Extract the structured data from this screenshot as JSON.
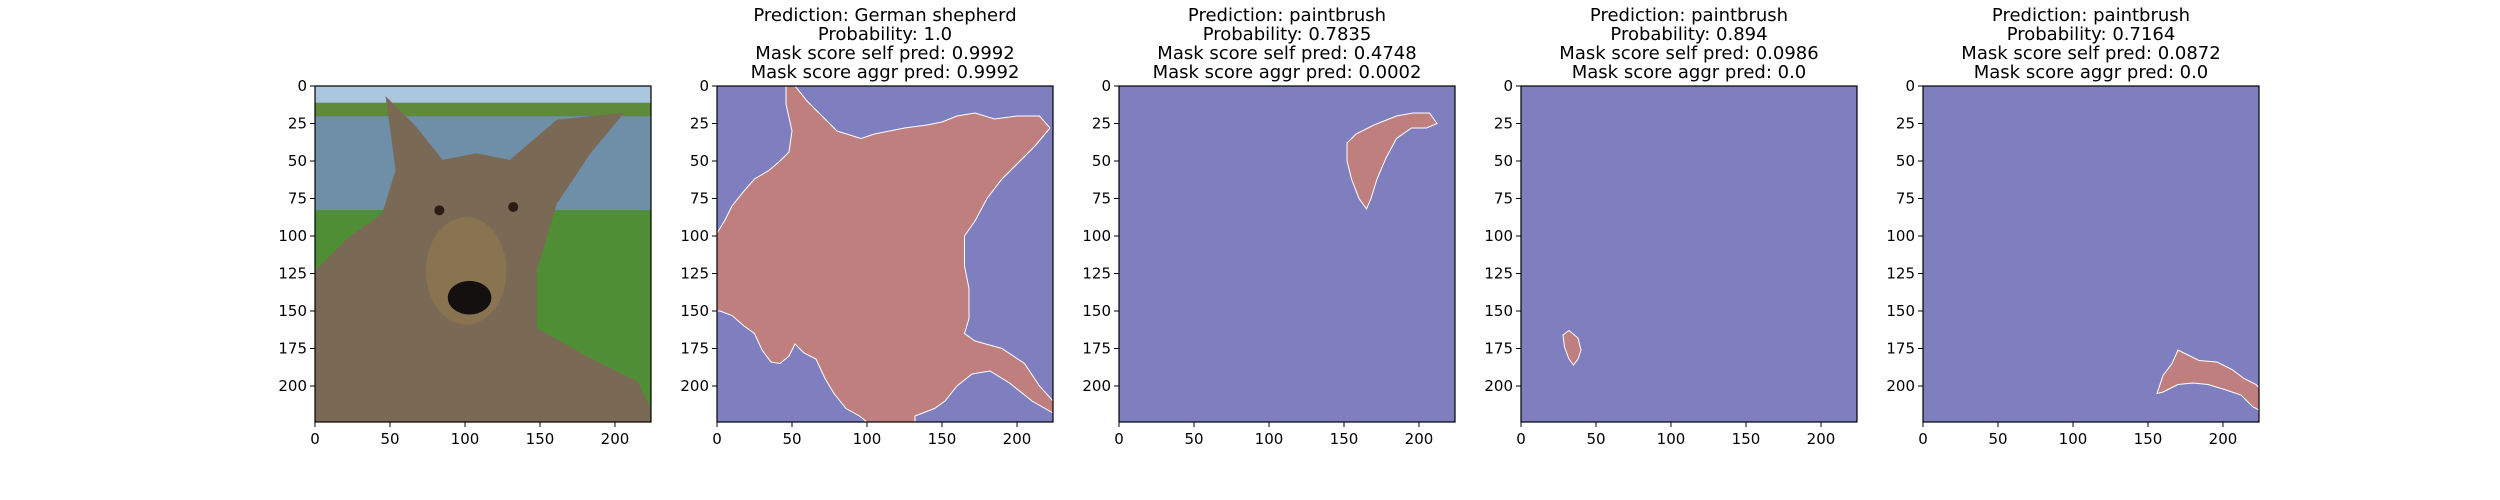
{
  "chart_data": [
    {
      "type": "image",
      "panel": "input-image",
      "subject": "wet German shepherd dog lying on grass in front of water",
      "title_lines": [],
      "xticks": [
        "0",
        "50",
        "100",
        "150",
        "200"
      ],
      "yticks": [
        "0",
        "25",
        "50",
        "75",
        "100",
        "125",
        "150",
        "175",
        "200"
      ],
      "xlim": [
        0,
        224
      ],
      "ylim": [
        224,
        0
      ]
    },
    {
      "type": "segmentation-mask",
      "panel": "mask-1",
      "title_lines": [
        "Prediction: German shepherd",
        "Probability: 1.0",
        "Mask score self pred: 0.9992",
        "Mask score aggr pred: 0.9992"
      ],
      "prediction": "German shepherd",
      "probability": 1.0,
      "mask_score_self_pred": 0.9992,
      "mask_score_aggr_pred": 0.9992,
      "xticks": [
        "0",
        "50",
        "100",
        "150",
        "200"
      ],
      "yticks": [
        "0",
        "25",
        "50",
        "75",
        "100",
        "125",
        "150",
        "175",
        "200"
      ],
      "xlim": [
        0,
        224
      ],
      "ylim": [
        224,
        0
      ],
      "mask_polygon": [
        [
          46,
          0
        ],
        [
          52,
          0
        ],
        [
          60,
          10
        ],
        [
          68,
          18
        ],
        [
          80,
          30
        ],
        [
          96,
          35
        ],
        [
          105,
          32
        ],
        [
          125,
          28
        ],
        [
          140,
          26
        ],
        [
          150,
          24
        ],
        [
          160,
          20
        ],
        [
          172,
          18
        ],
        [
          185,
          22
        ],
        [
          200,
          20
        ],
        [
          215,
          20
        ],
        [
          222,
          28
        ],
        [
          212,
          40
        ],
        [
          200,
          52
        ],
        [
          190,
          62
        ],
        [
          180,
          75
        ],
        [
          172,
          90
        ],
        [
          165,
          100
        ],
        [
          165,
          120
        ],
        [
          168,
          135
        ],
        [
          168,
          155
        ],
        [
          165,
          165
        ],
        [
          172,
          170
        ],
        [
          190,
          175
        ],
        [
          205,
          185
        ],
        [
          215,
          200
        ],
        [
          224,
          210
        ],
        [
          224,
          218
        ],
        [
          210,
          210
        ],
        [
          195,
          198
        ],
        [
          182,
          190
        ],
        [
          170,
          192
        ],
        [
          160,
          200
        ],
        [
          152,
          210
        ],
        [
          145,
          215
        ],
        [
          132,
          220
        ],
        [
          132,
          224
        ],
        [
          100,
          224
        ],
        [
          95,
          220
        ],
        [
          86,
          215
        ],
        [
          78,
          205
        ],
        [
          72,
          195
        ],
        [
          66,
          182
        ],
        [
          58,
          178
        ],
        [
          52,
          172
        ],
        [
          48,
          180
        ],
        [
          42,
          185
        ],
        [
          36,
          184
        ],
        [
          30,
          176
        ],
        [
          25,
          165
        ],
        [
          18,
          160
        ],
        [
          10,
          153
        ],
        [
          2,
          150
        ],
        [
          0,
          150
        ],
        [
          0,
          98
        ],
        [
          5,
          90
        ],
        [
          10,
          80
        ],
        [
          18,
          70
        ],
        [
          25,
          62
        ],
        [
          35,
          56
        ],
        [
          42,
          50
        ],
        [
          48,
          44
        ],
        [
          50,
          30
        ],
        [
          46,
          12
        ]
      ]
    },
    {
      "type": "segmentation-mask",
      "panel": "mask-2",
      "title_lines": [
        "Prediction: paintbrush",
        "Probability: 0.7835",
        "Mask score self pred: 0.4748",
        "Mask score aggr pred: 0.0002"
      ],
      "prediction": "paintbrush",
      "probability": 0.7835,
      "mask_score_self_pred": 0.4748,
      "mask_score_aggr_pred": 0.0002,
      "xticks": [
        "0",
        "50",
        "100",
        "150",
        "200"
      ],
      "yticks": [
        "0",
        "25",
        "50",
        "75",
        "100",
        "125",
        "150",
        "175",
        "200"
      ],
      "xlim": [
        0,
        224
      ],
      "ylim": [
        224,
        0
      ],
      "mask_polygon": [
        [
          152,
          38
        ],
        [
          158,
          32
        ],
        [
          170,
          26
        ],
        [
          185,
          20
        ],
        [
          196,
          18
        ],
        [
          207,
          18
        ],
        [
          212,
          25
        ],
        [
          205,
          28
        ],
        [
          195,
          28
        ],
        [
          185,
          35
        ],
        [
          178,
          48
        ],
        [
          172,
          62
        ],
        [
          168,
          75
        ],
        [
          165,
          82
        ],
        [
          160,
          75
        ],
        [
          155,
          62
        ],
        [
          152,
          50
        ]
      ]
    },
    {
      "type": "segmentation-mask",
      "panel": "mask-3",
      "title_lines": [
        "Prediction: paintbrush",
        "Probability: 0.894",
        "Mask score self pred: 0.0986",
        "Mask score aggr pred: 0.0"
      ],
      "prediction": "paintbrush",
      "probability": 0.894,
      "mask_score_self_pred": 0.0986,
      "mask_score_aggr_pred": 0.0,
      "xticks": [
        "0",
        "50",
        "100",
        "150",
        "200"
      ],
      "yticks": [
        "0",
        "25",
        "50",
        "75",
        "100",
        "125",
        "150",
        "175",
        "200"
      ],
      "xlim": [
        0,
        224
      ],
      "ylim": [
        224,
        0
      ],
      "mask_polygon": [
        [
          28,
          166
        ],
        [
          32,
          163
        ],
        [
          38,
          168
        ],
        [
          40,
          176
        ],
        [
          38,
          182
        ],
        [
          35,
          186
        ],
        [
          32,
          182
        ],
        [
          29,
          174
        ]
      ]
    },
    {
      "type": "segmentation-mask",
      "panel": "mask-4",
      "title_lines": [
        "Prediction: paintbrush",
        "Probability: 0.7164",
        "Mask score self pred: 0.0872",
        "Mask score aggr pred: 0.0"
      ],
      "prediction": "paintbrush",
      "probability": 0.7164,
      "mask_score_self_pred": 0.0872,
      "mask_score_aggr_pred": 0.0,
      "xticks": [
        "0",
        "50",
        "100",
        "150",
        "200"
      ],
      "yticks": [
        "0",
        "25",
        "50",
        "75",
        "100",
        "125",
        "150",
        "175",
        "200"
      ],
      "xlim": [
        0,
        224
      ],
      "ylim": [
        224,
        0
      ],
      "mask_polygon": [
        [
          156,
          205
        ],
        [
          160,
          193
        ],
        [
          166,
          185
        ],
        [
          170,
          176
        ],
        [
          176,
          179
        ],
        [
          184,
          183
        ],
        [
          196,
          184
        ],
        [
          206,
          189
        ],
        [
          214,
          195
        ],
        [
          222,
          199
        ],
        [
          224,
          201
        ],
        [
          224,
          216
        ],
        [
          220,
          214
        ],
        [
          212,
          206
        ],
        [
          200,
          202
        ],
        [
          190,
          199
        ],
        [
          180,
          198
        ],
        [
          170,
          199
        ],
        [
          160,
          204
        ]
      ]
    }
  ],
  "colors": {
    "background_mask": "#7f7fbf",
    "foreground_mask": "#bf7f7f",
    "mask_edge": "#ffffff",
    "axis": "#000000",
    "sky": "#a9c6de",
    "water": "#6f8fa8",
    "grass": "#4f8e35",
    "dog_fur": "#7a6a55"
  }
}
